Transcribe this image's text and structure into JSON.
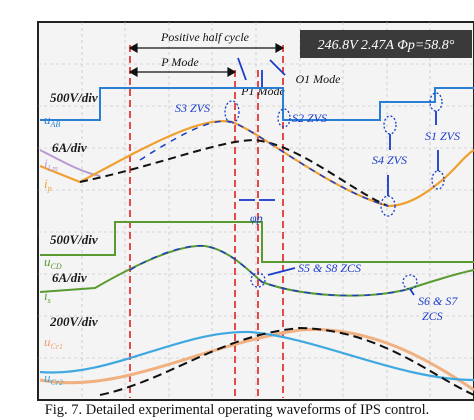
{
  "figure": {
    "header": {
      "cycle": "Positive half cycle",
      "p_mode": "P Mode",
      "p1_mode": "P1 Mode",
      "o1_mode": "O1 Mode"
    },
    "readout": "246.8V 2.47A  Φp=58.8°",
    "scales": [
      "500V/div",
      "6A/div",
      "500V/div",
      "6A/div",
      "200V/div"
    ],
    "signals": [
      {
        "main": "u",
        "sub": "AB"
      },
      {
        "main": "i",
        "sub": "Lm"
      },
      {
        "main": "i",
        "sub": "p"
      },
      {
        "main": "u",
        "sub": "CD"
      },
      {
        "main": "i",
        "sub": "s"
      },
      {
        "main": "u",
        "sub": "Cr1"
      },
      {
        "main": "u",
        "sub": "Cr2"
      }
    ],
    "annotations": [
      "S3 ZVS",
      "S2 ZVS",
      "S4 ZVS",
      "S1 ZVS",
      "φp",
      "S5 & S8 ZCS",
      "S6 & S7",
      "ZCS"
    ],
    "caption": "Fig. 7. Detailed experimental operating waveforms of IPS control."
  }
}
